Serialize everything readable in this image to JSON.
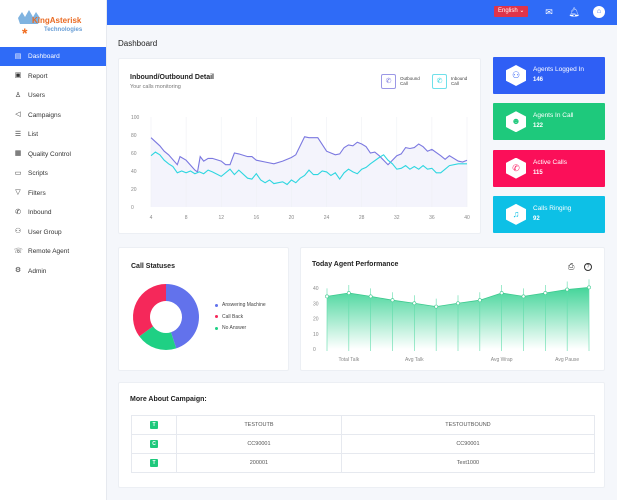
{
  "brand": {
    "logo_text": "KingAsterisk",
    "logo_sub": "Technologies"
  },
  "sidebar": {
    "items": [
      {
        "label": "Dashboard",
        "icon": "calendar-icon"
      },
      {
        "label": "Report",
        "icon": "report-icon"
      },
      {
        "label": "Users",
        "icon": "user-icon"
      },
      {
        "label": "Campaigns",
        "icon": "megaphone-icon"
      },
      {
        "label": "List",
        "icon": "list-icon"
      },
      {
        "label": "Quality Control",
        "icon": "clipboard-icon"
      },
      {
        "label": "Scripts",
        "icon": "script-icon"
      },
      {
        "label": "Filters",
        "icon": "filter-icon"
      },
      {
        "label": "Inbound",
        "icon": "phone-icon"
      },
      {
        "label": "User Group",
        "icon": "user-group-icon"
      },
      {
        "label": "Remote Agent",
        "icon": "remote-agent-icon"
      },
      {
        "label": "Admin",
        "icon": "gear-icon"
      }
    ]
  },
  "topbar": {
    "language": "English"
  },
  "page_title": "Dashboard",
  "line_card": {
    "title": "Inbound/Outbound Detail",
    "subtitle": "Your calls monitoring",
    "legend": [
      "Outbound Call",
      "Inbound Call"
    ]
  },
  "stats": [
    {
      "label": "Agents Logged In",
      "value": "146",
      "color": "#2f5ff5"
    },
    {
      "label": "Agents In Call",
      "value": "122",
      "color": "#1ec97c"
    },
    {
      "label": "Active Calls",
      "value": "115",
      "color": "#fb0f59"
    },
    {
      "label": "Calls Ringing",
      "value": "92",
      "color": "#0dc0e6"
    }
  ],
  "status_card": {
    "title": "Call Statuses"
  },
  "perf_card": {
    "title": "Today Agent Performance"
  },
  "campaign": {
    "title": "More About Campaign:",
    "rows": [
      {
        "badge": "T",
        "a": "TESTOUTB",
        "b": "TESTOUTBOUND"
      },
      {
        "badge": "C",
        "a": "CC90001",
        "b": "CC90001"
      },
      {
        "badge": "T",
        "a": "200001",
        "b": "Text1000"
      }
    ]
  },
  "chart_data": [
    {
      "type": "line",
      "xlim": [
        4,
        40
      ],
      "ylim": [
        0,
        100
      ],
      "xticks": [
        4,
        8,
        12,
        16,
        20,
        24,
        28,
        32,
        36,
        40
      ],
      "yticks": [
        0,
        20,
        40,
        60,
        80,
        100
      ],
      "grid": true,
      "legend_placement": "top-right",
      "series": [
        {
          "name": "Outbound Call",
          "color": "#7b78e0",
          "points": [
            [
              4,
              77
            ],
            [
              5,
              68
            ],
            [
              5.5,
              62
            ],
            [
              6,
              58
            ],
            [
              7,
              47
            ],
            [
              7.3,
              56
            ],
            [
              8,
              52
            ],
            [
              9,
              41
            ],
            [
              9.3,
              39
            ],
            [
              9.6,
              56
            ],
            [
              10,
              51
            ],
            [
              10.5,
              54
            ],
            [
              11,
              54
            ],
            [
              12,
              51
            ],
            [
              12.5,
              47
            ],
            [
              13,
              47
            ],
            [
              13.5,
              60
            ],
            [
              14,
              59
            ],
            [
              15,
              56
            ],
            [
              15.5,
              56
            ],
            [
              16,
              52
            ],
            [
              17,
              50
            ],
            [
              18,
              48
            ],
            [
              19,
              51
            ],
            [
              20,
              55
            ],
            [
              20.5,
              58
            ],
            [
              21.5,
              78
            ],
            [
              22,
              77
            ],
            [
              23,
              77
            ],
            [
              24,
              62
            ],
            [
              25,
              58
            ],
            [
              25.5,
              59
            ],
            [
              26,
              66
            ],
            [
              26.5,
              69
            ],
            [
              27,
              68
            ],
            [
              27.5,
              72
            ],
            [
              28,
              70
            ],
            [
              28.5,
              67
            ],
            [
              29,
              60
            ],
            [
              29.5,
              61
            ],
            [
              30,
              57
            ],
            [
              31,
              47
            ],
            [
              31.5,
              52
            ],
            [
              32,
              57
            ],
            [
              32.5,
              59
            ],
            [
              33,
              66
            ],
            [
              33.5,
              65
            ],
            [
              34,
              66
            ],
            [
              34.5,
              70
            ],
            [
              35,
              67
            ],
            [
              35.5,
              62
            ],
            [
              36,
              64
            ],
            [
              37,
              57
            ],
            [
              37.5,
              53
            ],
            [
              38,
              57
            ],
            [
              39,
              51
            ],
            [
              39.5,
              50
            ],
            [
              40,
              52
            ]
          ]
        },
        {
          "name": "Inbound Call",
          "color": "#2fd6e0",
          "points": [
            [
              4,
              57
            ],
            [
              4.5,
              61
            ],
            [
              5,
              58
            ],
            [
              5.5,
              52
            ],
            [
              6,
              48
            ],
            [
              6.5,
              45
            ],
            [
              7,
              38
            ],
            [
              7.5,
              40
            ],
            [
              8,
              38
            ],
            [
              8.5,
              40
            ],
            [
              9,
              37
            ],
            [
              9.5,
              39
            ],
            [
              10,
              37
            ],
            [
              10.5,
              41
            ],
            [
              11,
              39
            ],
            [
              12,
              34
            ],
            [
              13,
              42
            ],
            [
              13.5,
              36
            ],
            [
              14,
              41
            ],
            [
              15,
              32
            ],
            [
              15.5,
              31
            ],
            [
              16,
              37
            ],
            [
              16.5,
              30
            ],
            [
              17,
              27
            ],
            [
              17.5,
              30
            ],
            [
              18,
              26
            ],
            [
              18.5,
              27
            ],
            [
              19,
              28
            ],
            [
              19.5,
              25
            ],
            [
              20,
              30
            ],
            [
              20.5,
              27
            ],
            [
              21,
              32
            ],
            [
              21.5,
              35
            ],
            [
              22,
              41
            ],
            [
              22.5,
              36
            ],
            [
              23,
              36
            ],
            [
              23.5,
              40
            ],
            [
              24,
              39
            ],
            [
              24.5,
              35
            ],
            [
              25,
              38
            ],
            [
              25.5,
              31
            ],
            [
              26,
              38
            ],
            [
              26.5,
              42
            ],
            [
              27,
              39
            ],
            [
              27.5,
              37
            ],
            [
              28,
              42
            ],
            [
              28.5,
              44
            ],
            [
              29,
              48
            ],
            [
              30,
              55
            ],
            [
              30.5,
              58
            ],
            [
              31,
              52
            ],
            [
              31.5,
              48
            ],
            [
              32,
              42
            ],
            [
              32.5,
              43
            ],
            [
              33,
              46
            ],
            [
              33.5,
              42
            ],
            [
              34,
              45
            ],
            [
              34.5,
              42
            ],
            [
              35,
              46
            ],
            [
              35.5,
              42
            ],
            [
              36,
              43
            ],
            [
              36.5,
              38
            ],
            [
              37,
              38
            ],
            [
              37.5,
              42
            ],
            [
              38,
              46
            ],
            [
              39,
              48
            ],
            [
              40,
              48
            ]
          ]
        }
      ]
    },
    {
      "type": "pie",
      "donut": true,
      "slices": [
        {
          "label": "Answering Machine",
          "value": 45,
          "color": "#6272ec"
        },
        {
          "label": "Call Back",
          "value": 35,
          "color": "#f5285a"
        },
        {
          "label": "No Answer",
          "value": 20,
          "color": "#1fd084"
        }
      ],
      "legend_placement": "right"
    },
    {
      "type": "area",
      "ylim": [
        0,
        40
      ],
      "yticks": [
        0,
        10,
        20,
        30,
        40
      ],
      "color": "#2fd08e",
      "values": [
        34.5,
        36.7,
        34.5,
        32,
        30,
        27.8,
        30,
        32,
        36.7,
        34.5,
        36.7,
        39,
        40.4
      ],
      "category_labels": [
        {
          "index": 1,
          "label": "Total Talk"
        },
        {
          "index": 4,
          "label": "Avg Talk"
        },
        {
          "index": 8,
          "label": "Avg Wrap"
        },
        {
          "index": 11,
          "label": "Avg Pause"
        }
      ]
    }
  ]
}
